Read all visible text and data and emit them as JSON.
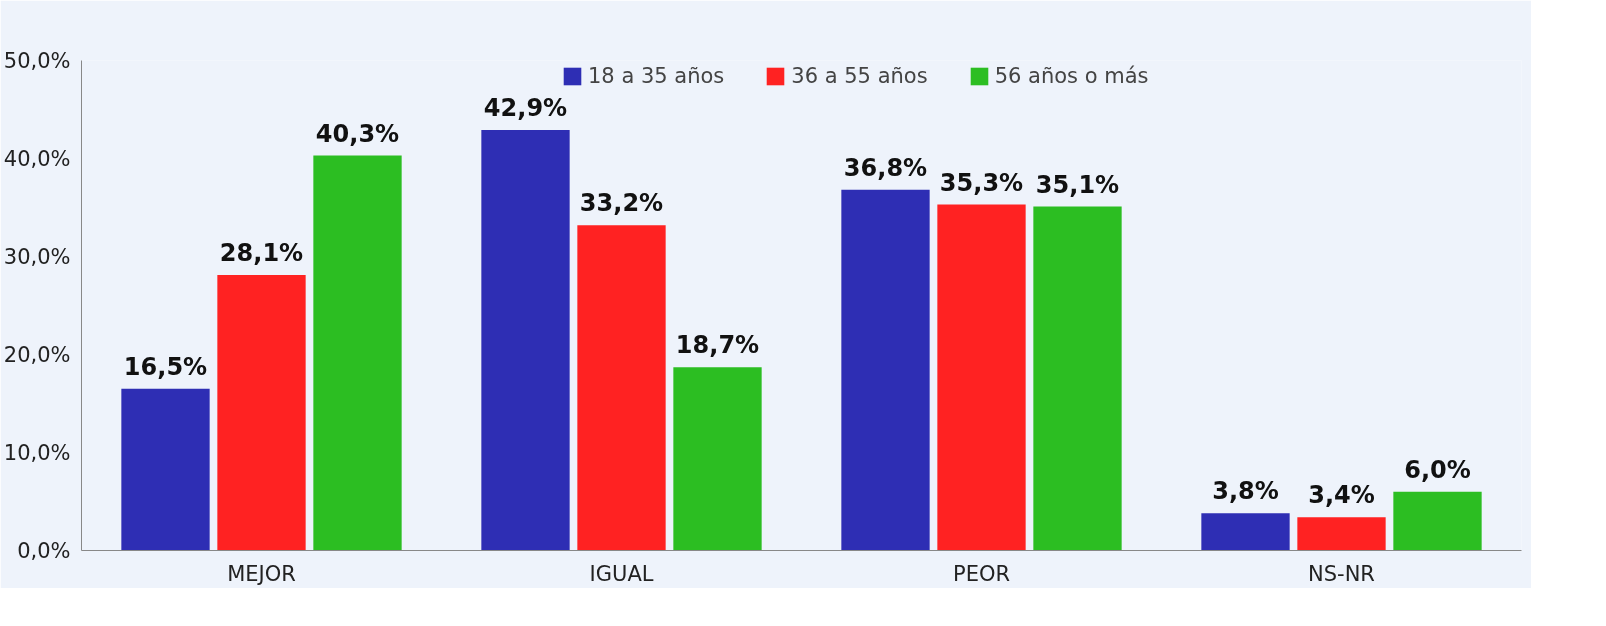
{
  "chart_data": {
    "type": "bar",
    "categories": [
      "MEJOR",
      "IGUAL",
      "PEOR",
      "NS-NR"
    ],
    "series": [
      {
        "name": "18 a 35 años",
        "color": "#2e2eb4",
        "values": [
          16.5,
          42.9,
          36.8,
          3.8
        ],
        "value_labels": [
          "16,5%",
          "42,9%",
          "36,8%",
          "3,8%"
        ]
      },
      {
        "name": "36 a 55 años",
        "color": "#ff2222",
        "values": [
          28.1,
          33.2,
          35.3,
          3.4
        ],
        "value_labels": [
          "28,1%",
          "33,2%",
          "35,3%",
          "3,4%"
        ]
      },
      {
        "name": "56 años o más",
        "color": "#2cbe22",
        "values": [
          40.3,
          18.7,
          35.1,
          6.0
        ],
        "value_labels": [
          "40,3%",
          "18,7%",
          "35,1%",
          "6,0%"
        ]
      }
    ],
    "ylim": [
      0,
      50
    ],
    "yticks": [
      {
        "value": 0,
        "label": "0,0%"
      },
      {
        "value": 10,
        "label": "10,0%"
      },
      {
        "value": 20,
        "label": "20,0%"
      },
      {
        "value": 30,
        "label": "30,0%"
      },
      {
        "value": 40,
        "label": "40,0%"
      },
      {
        "value": 50,
        "label": "50,0%"
      }
    ],
    "grid": false,
    "legend": "top"
  }
}
